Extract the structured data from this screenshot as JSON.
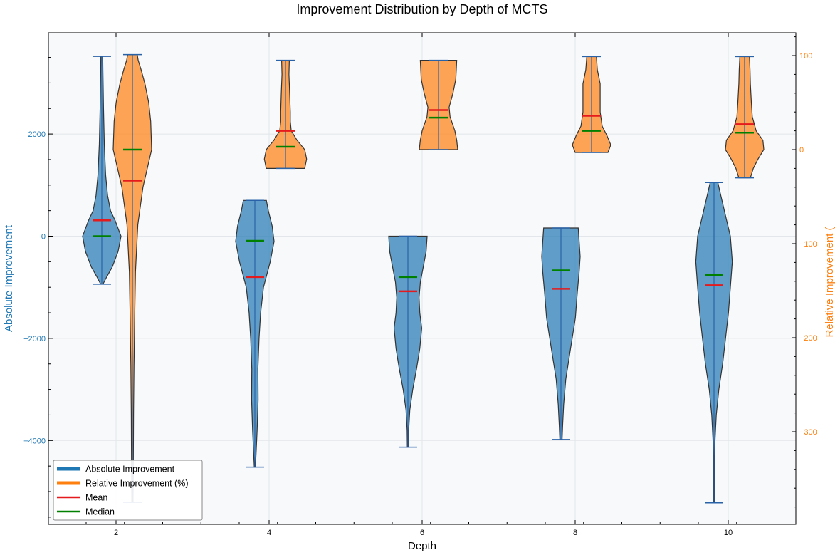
{
  "chart_data": {
    "type": "violin",
    "title": "Improvement Distribution by Depth of MCTS",
    "xlabel": "Depth",
    "ylabel_left": "Absolute Improvement",
    "ylabel_right": "Relative Improvement (",
    "categories": [
      "2",
      "4",
      "6",
      "8",
      "10"
    ],
    "ylim_left": [
      -5600,
      4000
    ],
    "ylim_right": [
      -400,
      125
    ],
    "yticks_left": [
      2000,
      0,
      -2000,
      -4000
    ],
    "yticks_left_labels": [
      "2000",
      "0",
      "−2000",
      "−4000"
    ],
    "yticks_right": [
      100,
      0,
      -100,
      -200,
      -300
    ],
    "yticks_right_labels": [
      "100",
      "0",
      "−100",
      "−200",
      "−300"
    ],
    "colors": {
      "absolute": "#1f77b4",
      "relative": "#ff7f0e",
      "mean": "#e41a1c",
      "median": "#008000",
      "plot_bg": "#f7f9fb"
    },
    "series": [
      {
        "name": "Absolute Improvement",
        "axis": "left",
        "violins": [
          {
            "depth": "2",
            "min": -940,
            "max": 3520,
            "mean": 310,
            "median": 0,
            "profile": [
              [
                -940,
                0.06
              ],
              [
                -800,
                0.25
              ],
              [
                -600,
                0.55
              ],
              [
                -300,
                0.85
              ],
              [
                0,
                1.0
              ],
              [
                300,
                0.7
              ],
              [
                500,
                0.45
              ],
              [
                800,
                0.3
              ],
              [
                1200,
                0.2
              ],
              [
                1800,
                0.13
              ],
              [
                2500,
                0.09
              ],
              [
                3200,
                0.06
              ],
              [
                3520,
                0.05
              ]
            ]
          },
          {
            "depth": "4",
            "min": -4520,
            "max": 700,
            "mean": -800,
            "median": -90,
            "profile": [
              [
                -4520,
                0.03
              ],
              [
                -4200,
                0.07
              ],
              [
                -3800,
                0.12
              ],
              [
                -3200,
                0.17
              ],
              [
                -2600,
                0.16
              ],
              [
                -2000,
                0.22
              ],
              [
                -1500,
                0.3
              ],
              [
                -1000,
                0.45
              ],
              [
                -500,
                0.8
              ],
              [
                -100,
                1.0
              ],
              [
                200,
                0.9
              ],
              [
                500,
                0.7
              ],
              [
                700,
                0.6
              ]
            ]
          },
          {
            "depth": "6",
            "min": -4130,
            "max": 0,
            "mean": -1080,
            "median": -800,
            "profile": [
              [
                -4130,
                0.03
              ],
              [
                -3800,
                0.04
              ],
              [
                -3400,
                0.1
              ],
              [
                -3000,
                0.25
              ],
              [
                -2600,
                0.45
              ],
              [
                -2200,
                0.62
              ],
              [
                -1800,
                0.72
              ],
              [
                -1500,
                0.62
              ],
              [
                -1200,
                0.58
              ],
              [
                -900,
                0.65
              ],
              [
                -600,
                0.8
              ],
              [
                -300,
                0.95
              ],
              [
                0,
                1.0
              ]
            ]
          },
          {
            "depth": "8",
            "min": -3980,
            "max": 160,
            "mean": -1030,
            "median": -670,
            "profile": [
              [
                -3980,
                0.06
              ],
              [
                -3700,
                0.09
              ],
              [
                -3300,
                0.14
              ],
              [
                -2800,
                0.25
              ],
              [
                -2200,
                0.5
              ],
              [
                -1600,
                0.75
              ],
              [
                -1100,
                0.85
              ],
              [
                -700,
                0.95
              ],
              [
                -400,
                1.0
              ],
              [
                -100,
                0.95
              ],
              [
                160,
                0.9
              ]
            ]
          },
          {
            "depth": "10",
            "min": -5220,
            "max": 1050,
            "mean": -960,
            "median": -760,
            "profile": [
              [
                -5220,
                0.02
              ],
              [
                -4600,
                0.03
              ],
              [
                -4000,
                0.05
              ],
              [
                -3500,
                0.12
              ],
              [
                -3000,
                0.25
              ],
              [
                -2500,
                0.45
              ],
              [
                -2000,
                0.6
              ],
              [
                -1500,
                0.75
              ],
              [
                -1000,
                0.85
              ],
              [
                -500,
                0.95
              ],
              [
                0,
                0.85
              ],
              [
                400,
                0.6
              ],
              [
                800,
                0.35
              ],
              [
                1050,
                0.2
              ]
            ]
          }
        ]
      },
      {
        "name": "Relative Improvement (%)",
        "axis": "right",
        "violins": [
          {
            "depth": "2",
            "min": -375,
            "max": 101,
            "mean": -33,
            "median": 0,
            "profile": [
              [
                -375,
                0.03
              ],
              [
                -330,
                0.05
              ],
              [
                -280,
                0.06
              ],
              [
                -230,
                0.08
              ],
              [
                -180,
                0.12
              ],
              [
                -130,
                0.16
              ],
              [
                -80,
                0.28
              ],
              [
                -40,
                0.55
              ],
              [
                0,
                1.0
              ],
              [
                30,
                0.95
              ],
              [
                50,
                0.85
              ],
              [
                70,
                0.65
              ],
              [
                85,
                0.45
              ],
              [
                95,
                0.3
              ],
              [
                101,
                0.25
              ]
            ]
          },
          {
            "depth": "4",
            "min": -20,
            "max": 95,
            "mean": 20,
            "median": 3,
            "profile": [
              [
                -20,
                1.0
              ],
              [
                -10,
                1.1
              ],
              [
                0,
                1.0
              ],
              [
                10,
                0.6
              ],
              [
                20,
                0.3
              ],
              [
                30,
                0.25
              ],
              [
                40,
                0.25
              ],
              [
                60,
                0.22
              ],
              [
                80,
                0.18
              ],
              [
                95,
                0.2
              ]
            ]
          },
          {
            "depth": "6",
            "min": 0,
            "max": 95,
            "mean": 42,
            "median": 34,
            "profile": [
              [
                0,
                1.0
              ],
              [
                10,
                0.95
              ],
              [
                20,
                0.85
              ],
              [
                35,
                0.6
              ],
              [
                45,
                0.55
              ],
              [
                60,
                0.75
              ],
              [
                75,
                0.9
              ],
              [
                95,
                0.95
              ]
            ]
          },
          {
            "depth": "8",
            "min": -3,
            "max": 99,
            "mean": 36,
            "median": 20,
            "profile": [
              [
                -3,
                0.85
              ],
              [
                5,
                1.0
              ],
              [
                15,
                0.8
              ],
              [
                25,
                0.55
              ],
              [
                40,
                0.45
              ],
              [
                55,
                0.45
              ],
              [
                70,
                0.45
              ],
              [
                85,
                0.3
              ],
              [
                99,
                0.25
              ]
            ]
          },
          {
            "depth": "10",
            "min": -30,
            "max": 99,
            "mean": 27,
            "median": 18,
            "profile": [
              [
                -30,
                0.3
              ],
              [
                -20,
                0.45
              ],
              [
                -10,
                0.7
              ],
              [
                0,
                1.0
              ],
              [
                10,
                0.95
              ],
              [
                20,
                0.6
              ],
              [
                35,
                0.4
              ],
              [
                50,
                0.35
              ],
              [
                70,
                0.3
              ],
              [
                85,
                0.28
              ],
              [
                99,
                0.25
              ]
            ]
          }
        ]
      }
    ],
    "legend": {
      "location": "lower-left",
      "entries": [
        {
          "label": "Absolute Improvement",
          "color": "#1f77b4",
          "kind": "thick"
        },
        {
          "label": "Relative Improvement (%)",
          "color": "#ff7f0e",
          "kind": "thick"
        },
        {
          "label": "Mean",
          "color": "#e41a1c",
          "kind": "line"
        },
        {
          "label": "Median",
          "color": "#008000",
          "kind": "line"
        }
      ]
    }
  }
}
